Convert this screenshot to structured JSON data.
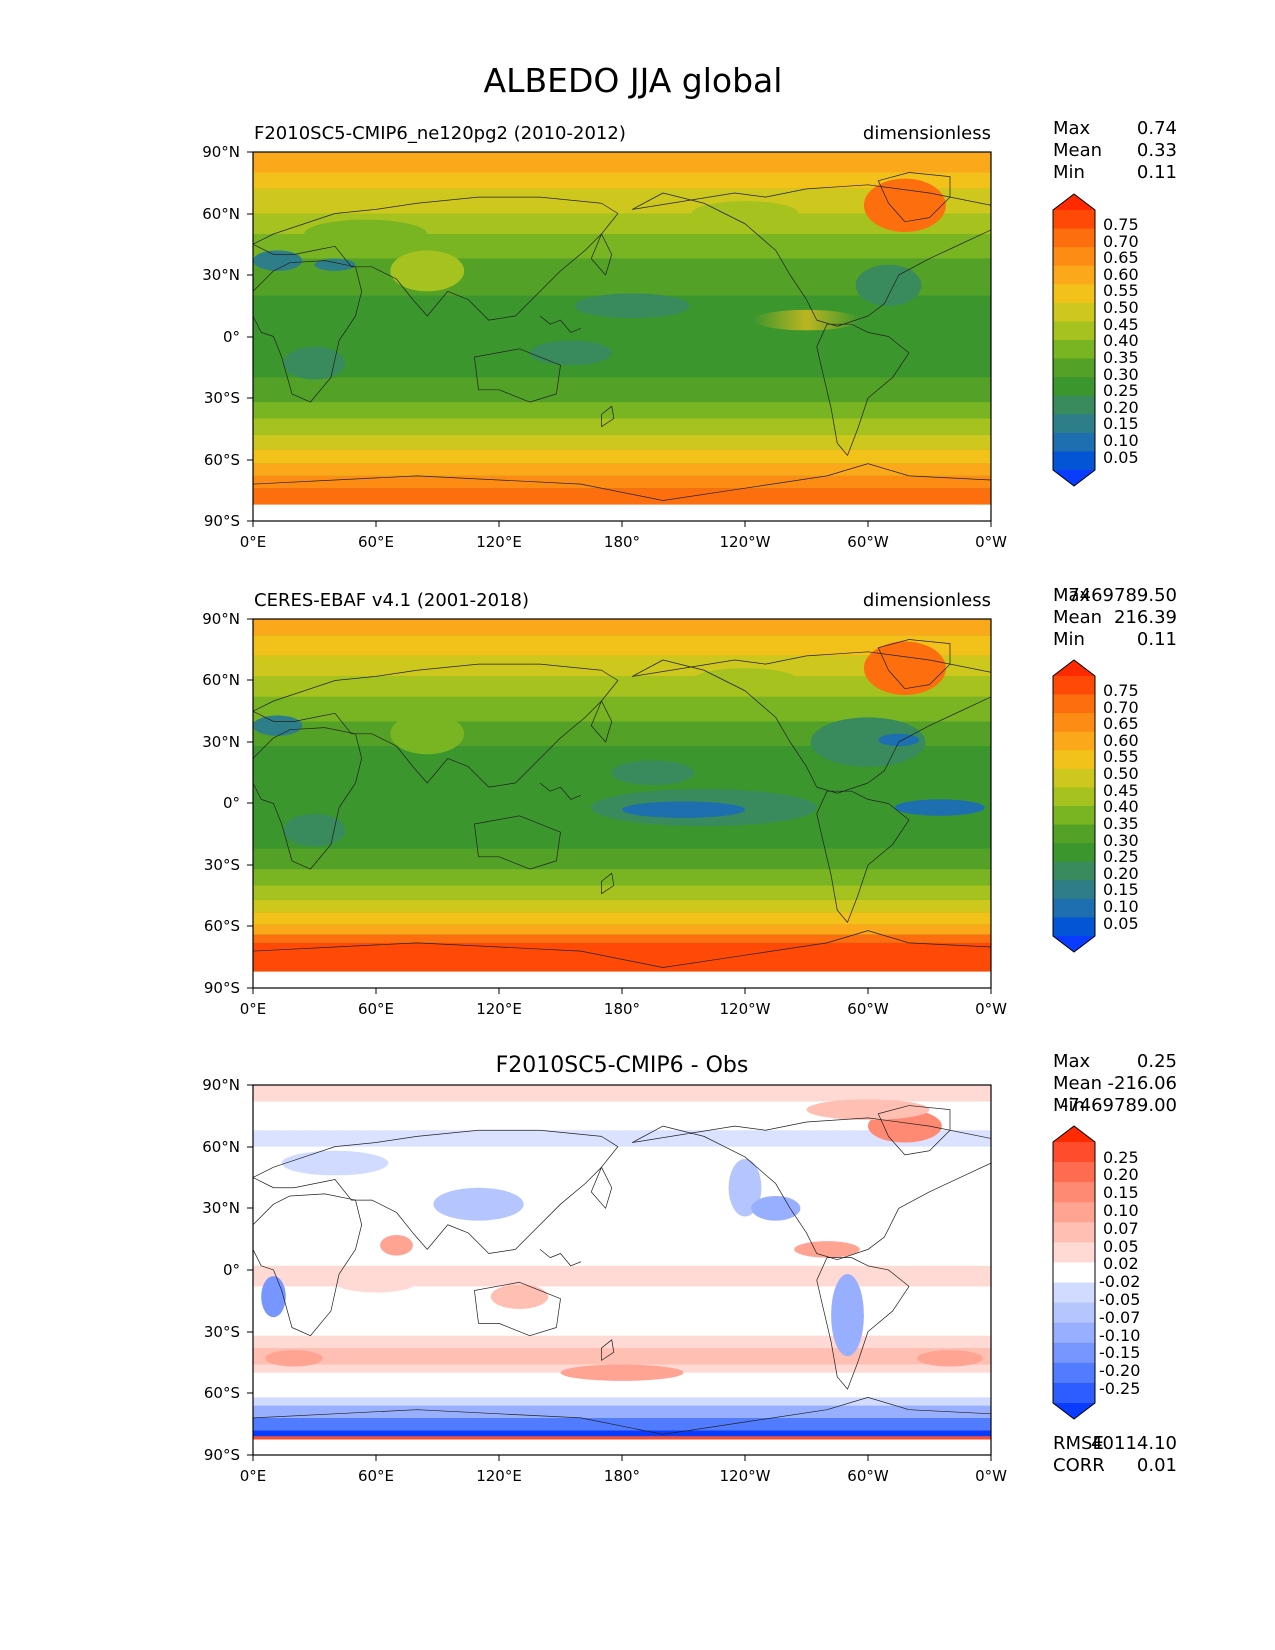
{
  "title": "ALBEDO JJA global",
  "x_ticks": [
    "0°E",
    "60°E",
    "120°E",
    "180°",
    "120°W",
    "60°W",
    "0°W"
  ],
  "y_ticks": [
    "90°N",
    "60°N",
    "30°N",
    "0°",
    "30°S",
    "60°S",
    "90°S"
  ],
  "panels": [
    {
      "title_left": "F2010SC5-CMIP6_ne120pg2 (2010-2012)",
      "title_right": "dimensionless",
      "stats": [
        {
          "label": "Max",
          "value": "0.74"
        },
        {
          "label": "Mean",
          "value": "0.33"
        },
        {
          "label": "Min",
          "value": "0.11"
        }
      ],
      "colorbar_labels": [
        "0.75",
        "0.70",
        "0.65",
        "0.60",
        "0.55",
        "0.50",
        "0.45",
        "0.40",
        "0.35",
        "0.30",
        "0.25",
        "0.20",
        "0.15",
        "0.10",
        "0.05"
      ]
    },
    {
      "title_left": "CERES-EBAF v4.1 (2001-2018)",
      "title_right": "dimensionless",
      "stats": [
        {
          "label": "Max",
          "value": "7469789.50"
        },
        {
          "label": "Mean",
          "value": "216.39"
        },
        {
          "label": "Min",
          "value": "0.11"
        }
      ],
      "colorbar_labels": [
        "0.75",
        "0.70",
        "0.65",
        "0.60",
        "0.55",
        "0.50",
        "0.45",
        "0.40",
        "0.35",
        "0.30",
        "0.25",
        "0.20",
        "0.15",
        "0.10",
        "0.05"
      ]
    },
    {
      "title_center": "F2010SC5-CMIP6 - Obs",
      "stats": [
        {
          "label": "Max",
          "value": "0.25"
        },
        {
          "label": "Mean",
          "value": "-216.06"
        },
        {
          "label": "Min",
          "value": "-7469789.00"
        }
      ],
      "colorbar_labels": [
        "0.25",
        "0.20",
        "0.15",
        "0.10",
        "0.07",
        "0.05",
        "0.02",
        "-0.02",
        "-0.05",
        "-0.07",
        "-0.10",
        "-0.15",
        "-0.20",
        "-0.25"
      ],
      "extra_stats": [
        {
          "label": "RMSE",
          "value": "40114.10"
        },
        {
          "label": "CORR",
          "value": "0.01"
        }
      ]
    }
  ],
  "colors": {
    "albedo_scale": [
      "#0a3cff",
      "#0455d6",
      "#1d6fb0",
      "#2e7e8a",
      "#398a5c",
      "#3c962e",
      "#53a127",
      "#79b423",
      "#a5c21f",
      "#cdc71e",
      "#f2c21b",
      "#fba81a",
      "#fc8c14",
      "#fd6e0e",
      "#fe4a06",
      "#ff2a00"
    ],
    "diff_scale": [
      "#0a3cff",
      "#2d5cff",
      "#527cff",
      "#7896ff",
      "#98afff",
      "#b5c6ff",
      "#d1dbff",
      "#ffffff",
      "#ffd9d3",
      "#ffbfb3",
      "#ffa493",
      "#ff8a73",
      "#ff6c50",
      "#ff4c2c",
      "#ff2a00"
    ]
  }
}
